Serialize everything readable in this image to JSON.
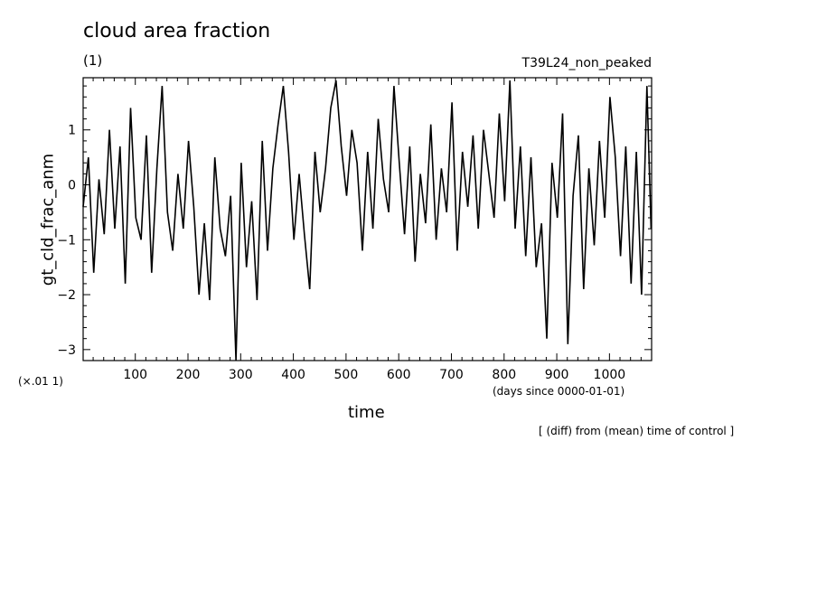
{
  "chart_data": {
    "type": "line",
    "title": "cloud area fraction",
    "subtitle": "(1)",
    "run_label": "T39L24_non_peaked",
    "xlabel": "time",
    "x_units": "(days since 0000-01-01)",
    "ylabel": "gt_cld_frac_anm",
    "y_scale_note": "(×.01 1)",
    "note": "[ (diff) from (mean) time of control ]",
    "xlim": [
      1,
      1080
    ],
    "ylim": [
      -3.2,
      1.95
    ],
    "x_ticks": [
      100,
      200,
      300,
      400,
      500,
      600,
      700,
      800,
      900,
      1000
    ],
    "y_ticks": [
      1,
      0,
      -1,
      -2,
      -3
    ],
    "grid": false,
    "line_color": "#000000",
    "series": [
      {
        "x": [
          1,
          11,
          21,
          31,
          41,
          51,
          61,
          71,
          81,
          91,
          101,
          111,
          121,
          131,
          141,
          151,
          161,
          171,
          181,
          191,
          201,
          211,
          221,
          231,
          241,
          251,
          261,
          271,
          281,
          291,
          301,
          311,
          321,
          331,
          341,
          351,
          361,
          371,
          381,
          391,
          401,
          411,
          421,
          431,
          441,
          451,
          461,
          471,
          481,
          491,
          501,
          511,
          521,
          531,
          541,
          551,
          561,
          571,
          581,
          591,
          601,
          611,
          621,
          631,
          641,
          651,
          661,
          671,
          681,
          691,
          701,
          711,
          721,
          731,
          741,
          751,
          761,
          771,
          781,
          791,
          801,
          811,
          821,
          831,
          841,
          851,
          861,
          871,
          881,
          891,
          901,
          911,
          921,
          931,
          941,
          951,
          961,
          971,
          981,
          991,
          1001,
          1011,
          1021,
          1031,
          1041,
          1051,
          1061,
          1071,
          1079
        ],
        "values": [
          -0.4,
          0.5,
          -1.6,
          0.1,
          -0.9,
          1.0,
          -0.8,
          0.7,
          -1.8,
          1.4,
          -0.6,
          -1.0,
          0.9,
          -1.6,
          0.3,
          1.8,
          -0.5,
          -1.2,
          0.2,
          -0.8,
          0.8,
          -0.4,
          -2.0,
          -0.7,
          -2.1,
          0.5,
          -0.8,
          -1.3,
          -0.2,
          -3.2,
          0.4,
          -1.5,
          -0.3,
          -2.1,
          0.8,
          -1.2,
          0.3,
          1.1,
          1.8,
          0.6,
          -1.0,
          0.2,
          -0.9,
          -1.9,
          0.6,
          -0.5,
          0.3,
          1.4,
          1.9,
          0.7,
          -0.2,
          1.0,
          0.4,
          -1.2,
          0.6,
          -0.8,
          1.2,
          0.1,
          -0.5,
          1.8,
          0.4,
          -0.9,
          0.7,
          -1.4,
          0.2,
          -0.7,
          1.1,
          -1.0,
          0.3,
          -0.5,
          1.5,
          -1.2,
          0.6,
          -0.4,
          0.9,
          -0.8,
          1.0,
          0.2,
          -0.6,
          1.3,
          -0.3,
          1.9,
          -0.8,
          0.7,
          -1.3,
          0.5,
          -1.5,
          -0.7,
          -2.8,
          0.4,
          -0.6,
          1.3,
          -2.9,
          -0.2,
          0.9,
          -1.9,
          0.3,
          -1.1,
          0.8,
          -0.6,
          1.6,
          0.5,
          -1.3,
          0.7,
          -1.8,
          0.6,
          -2.0,
          1.8,
          -0.8
        ]
      }
    ]
  }
}
